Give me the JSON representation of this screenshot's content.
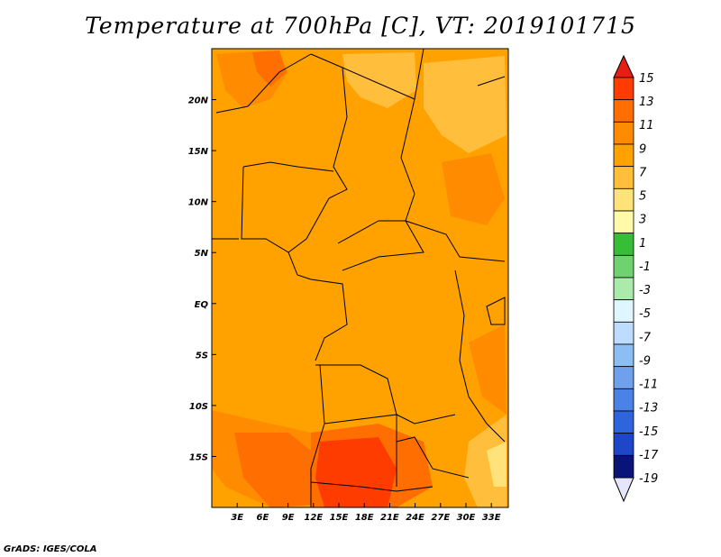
{
  "title": "Temperature at 700hPa [C], VT: 2019101715",
  "credit": "GrADS: IGES/COLA",
  "map": {
    "lon_ticks": [
      "3E",
      "6E",
      "9E",
      "12E",
      "15E",
      "18E",
      "21E",
      "24E",
      "27E",
      "30E",
      "33E"
    ],
    "lat_ticks": [
      "20N",
      "15N",
      "10N",
      "5N",
      "EQ",
      "5S",
      "10S",
      "15S"
    ],
    "lon_values": [
      3,
      6,
      9,
      12,
      15,
      18,
      21,
      24,
      27,
      30,
      33
    ],
    "lat_values": [
      20,
      15,
      10,
      5,
      0,
      -5,
      -10,
      -15
    ],
    "lon_range": [
      0,
      35
    ],
    "lat_range": [
      -20,
      25
    ],
    "background_color": "#ffa200"
  },
  "colorbar": {
    "labels": [
      "15",
      "13",
      "11",
      "9",
      "7",
      "5",
      "3",
      "1",
      "-1",
      "-3",
      "-5",
      "-7",
      "-9",
      "-11",
      "-13",
      "-15",
      "-17",
      "-19"
    ],
    "colors": [
      "#ff3c00",
      "#ff6e00",
      "#ff8c00",
      "#ffa200",
      "#ffbe3c",
      "#ffe27a",
      "#fffaaa",
      "#37be37",
      "#6ed26e",
      "#aaeaaa",
      "#e0f6ff",
      "#bedcff",
      "#8cbef5",
      "#6ea0eb",
      "#4b82e6",
      "#2e64dc",
      "#1e46c8",
      "#0a1478"
    ],
    "top_color": "#e61e14",
    "bottom_color": "#e6e6fa"
  }
}
